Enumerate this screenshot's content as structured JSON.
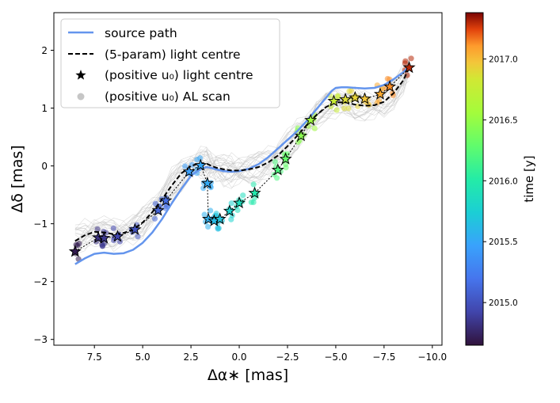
{
  "chart_data": {
    "type": "line",
    "xlabel": "Δα∗ [mas]",
    "ylabel": "Δδ [mas]",
    "xlim": [
      9.6,
      -10.5
    ],
    "ylim": [
      -3.1,
      2.65
    ],
    "x_ticks": [
      7.5,
      5.0,
      2.5,
      0.0,
      -2.5,
      -5.0,
      -7.5,
      -10.0
    ],
    "x_tick_labels": [
      "7.5",
      "5.0",
      "2.5",
      "0.0",
      "−2.5",
      "−5.0",
      "−7.5",
      "−10.0"
    ],
    "y_ticks": [
      -3,
      -2,
      -1,
      0,
      1,
      2
    ],
    "y_tick_labels": [
      "−3",
      "−2",
      "−1",
      "0",
      "1",
      "2"
    ],
    "colorbar": {
      "label": "time [y]",
      "range": [
        2014.65,
        2017.38
      ],
      "ticks": [
        2015.0,
        2015.5,
        2016.0,
        2016.5,
        2017.0
      ],
      "tick_labels": [
        "2015.0",
        "2015.5",
        "2016.0",
        "2016.5",
        "2017.0"
      ]
    },
    "legend": {
      "placement": "upper-left",
      "entries": [
        {
          "label": "source path",
          "style": "line",
          "color": "#6495ed"
        },
        {
          "label": "(5-param) light centre",
          "style": "dashed",
          "color": "#000000"
        },
        {
          "label": "(positive u₀) light centre",
          "style": "star",
          "color": "#000000"
        },
        {
          "label": "(positive u₀) AL scan",
          "style": "dot",
          "color": "#a0a0a0"
        }
      ]
    },
    "series": [
      {
        "name": "source path",
        "x": [
          8.5,
          8.0,
          7.5,
          7.0,
          6.5,
          6.0,
          5.5,
          5.0,
          4.5,
          4.0,
          3.5,
          3.0,
          2.5,
          2.0,
          1.7,
          1.5,
          1.2,
          0.8,
          0.4,
          0.0,
          -0.5,
          -1.0,
          -1.5,
          -2.0,
          -2.5,
          -3.0,
          -3.5,
          -4.0,
          -4.5,
          -4.8,
          -5.0,
          -5.3,
          -5.6,
          -6.0,
          -6.5,
          -7.0,
          -7.5,
          -8.0,
          -8.5,
          -8.8
        ],
        "y": [
          -1.7,
          -1.6,
          -1.52,
          -1.5,
          -1.52,
          -1.51,
          -1.45,
          -1.33,
          -1.15,
          -0.92,
          -0.65,
          -0.4,
          -0.17,
          -0.05,
          -0.02,
          -0.03,
          -0.06,
          -0.09,
          -0.1,
          -0.09,
          -0.05,
          0.03,
          0.15,
          0.3,
          0.45,
          0.6,
          0.78,
          0.98,
          1.18,
          1.3,
          1.35,
          1.36,
          1.36,
          1.35,
          1.34,
          1.35,
          1.4,
          1.5,
          1.62,
          1.72
        ]
      },
      {
        "name": "(5-param) light centre",
        "x": [
          8.5,
          8.0,
          7.5,
          7.0,
          6.5,
          6.0,
          5.5,
          5.0,
          4.5,
          4.0,
          3.5,
          3.0,
          2.5,
          2.0,
          1.7,
          1.5,
          1.2,
          0.8,
          0.4,
          0.0,
          -0.5,
          -1.0,
          -1.5,
          -2.0,
          -2.5,
          -3.0,
          -3.5,
          -4.0,
          -4.5,
          -5.0,
          -5.5,
          -6.0,
          -6.5,
          -7.0,
          -7.5,
          -8.0,
          -8.5,
          -8.8
        ],
        "y": [
          -1.3,
          -1.2,
          -1.14,
          -1.15,
          -1.18,
          -1.16,
          -1.1,
          -0.98,
          -0.8,
          -0.58,
          -0.34,
          -0.13,
          0.0,
          0.05,
          0.04,
          0.01,
          -0.03,
          -0.06,
          -0.08,
          -0.08,
          -0.06,
          -0.02,
          0.06,
          0.18,
          0.34,
          0.52,
          0.71,
          0.88,
          1.02,
          1.1,
          1.1,
          1.06,
          1.04,
          1.05,
          1.11,
          1.26,
          1.48,
          1.7
        ]
      }
    ],
    "light_centre_stars": [
      {
        "x": 8.5,
        "y": -1.48,
        "t": 2014.7
      },
      {
        "x": 7.3,
        "y": -1.24,
        "t": 2014.82
      },
      {
        "x": 7.0,
        "y": -1.25,
        "t": 2014.86
      },
      {
        "x": 6.3,
        "y": -1.22,
        "t": 2014.93
      },
      {
        "x": 5.4,
        "y": -1.1,
        "t": 2015.0
      },
      {
        "x": 4.2,
        "y": -0.77,
        "t": 2015.1
      },
      {
        "x": 3.8,
        "y": -0.6,
        "t": 2015.15
      },
      {
        "x": 2.6,
        "y": -0.1,
        "t": 2015.45
      },
      {
        "x": 2.0,
        "y": 0.01,
        "t": 2015.5
      },
      {
        "x": 1.65,
        "y": -0.3,
        "t": 2015.52
      },
      {
        "x": 1.6,
        "y": -0.92,
        "t": 2015.56
      },
      {
        "x": 1.3,
        "y": -0.95,
        "t": 2015.62
      },
      {
        "x": 1.0,
        "y": -0.92,
        "t": 2015.68
      },
      {
        "x": 0.5,
        "y": -0.78,
        "t": 2015.78
      },
      {
        "x": 0.0,
        "y": -0.64,
        "t": 2015.88
      },
      {
        "x": -0.8,
        "y": -0.47,
        "t": 2015.98
      },
      {
        "x": -2.0,
        "y": -0.07,
        "t": 2016.2
      },
      {
        "x": -2.4,
        "y": 0.12,
        "t": 2016.3
      },
      {
        "x": -3.2,
        "y": 0.52,
        "t": 2016.45
      },
      {
        "x": -3.7,
        "y": 0.79,
        "t": 2016.55
      },
      {
        "x": -4.9,
        "y": 1.12,
        "t": 2016.78
      },
      {
        "x": -5.5,
        "y": 1.15,
        "t": 2016.88
      },
      {
        "x": -6.0,
        "y": 1.18,
        "t": 2016.92
      },
      {
        "x": -6.5,
        "y": 1.16,
        "t": 2016.97
      },
      {
        "x": -7.3,
        "y": 1.24,
        "t": 2017.06
      },
      {
        "x": -7.8,
        "y": 1.37,
        "t": 2017.13
      },
      {
        "x": -8.8,
        "y": 1.7,
        "t": 2017.3
      }
    ]
  }
}
